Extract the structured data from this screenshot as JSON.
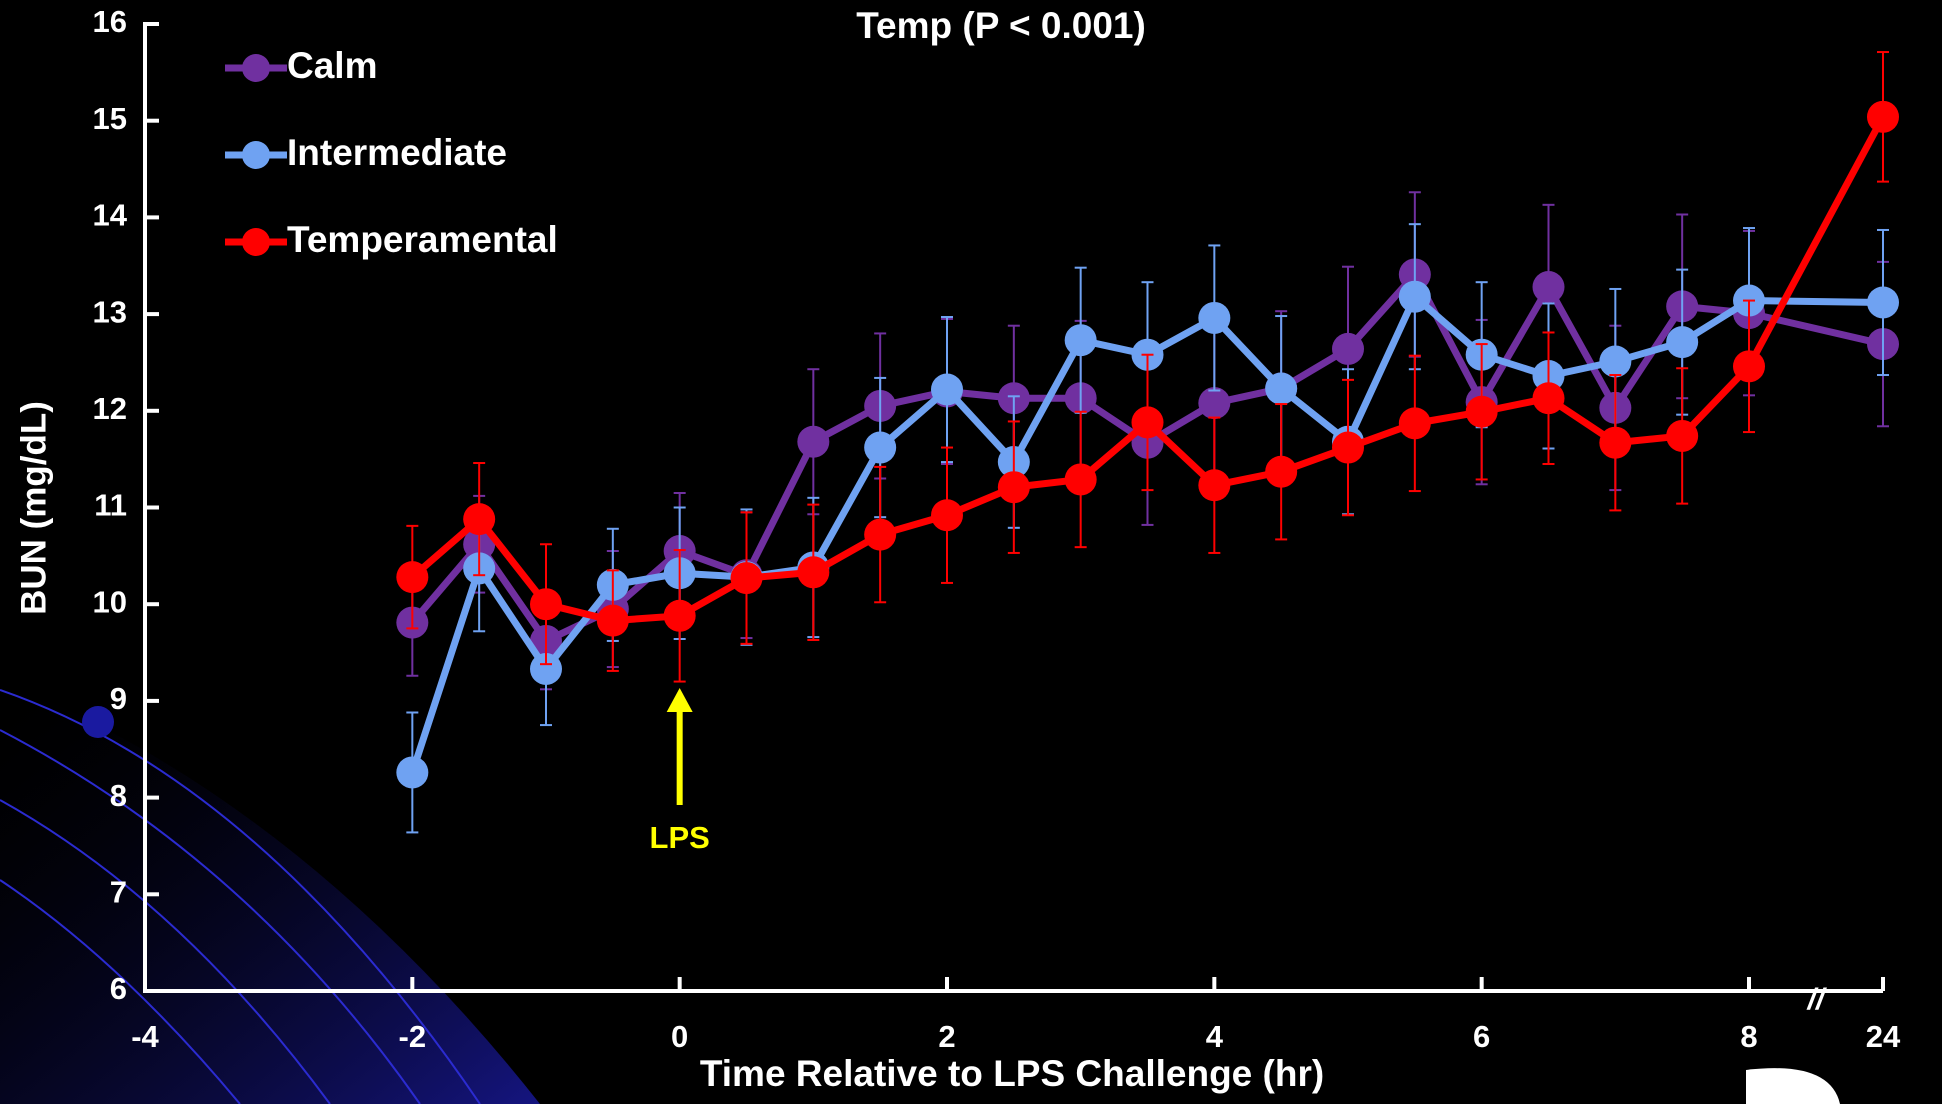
{
  "chart_data": {
    "type": "line",
    "title": "Temp (P < 0.001)",
    "x_label": "Time Relative to LPS Challenge (hr)",
    "y_label": "BUN (mg/dL)",
    "x": [
      -2,
      -1.5,
      -1,
      -0.5,
      0,
      0.5,
      1,
      1.5,
      2,
      2.5,
      3,
      3.5,
      4,
      4.5,
      5,
      5.5,
      6,
      6.5,
      7,
      7.5,
      8,
      24
    ],
    "series": [
      {
        "name": "Calm",
        "color": "#7030a0",
        "values": [
          9.81,
          10.62,
          9.62,
          9.95,
          10.55,
          10.3,
          11.68,
          12.05,
          12.2,
          12.13,
          12.13,
          11.67,
          12.08,
          12.23,
          12.64,
          13.41,
          12.09,
          13.28,
          12.03,
          13.08,
          13.01,
          12.69
        ],
        "errors": [
          0.55,
          0.5,
          0.5,
          0.6,
          0.6,
          0.65,
          0.75,
          0.75,
          0.75,
          0.75,
          0.8,
          0.85,
          0.85,
          0.8,
          0.85,
          0.85,
          0.85,
          0.85,
          0.85,
          0.95,
          0.85,
          0.85
        ]
      },
      {
        "name": "Intermediate",
        "color": "#6fa2f2",
        "values": [
          8.26,
          10.37,
          9.33,
          10.2,
          10.32,
          10.28,
          10.38,
          11.62,
          12.22,
          11.47,
          12.73,
          12.58,
          12.96,
          12.23,
          11.68,
          13.18,
          12.58,
          12.36,
          12.51,
          12.71,
          13.14,
          13.12
        ],
        "errors": [
          0.62,
          0.65,
          0.58,
          0.58,
          0.68,
          0.7,
          0.72,
          0.72,
          0.75,
          0.68,
          0.75,
          0.75,
          0.75,
          0.75,
          0.75,
          0.75,
          0.75,
          0.75,
          0.75,
          0.75,
          0.75,
          0.75
        ]
      },
      {
        "name": "Temperamental",
        "color": "#ff0000",
        "values": [
          10.28,
          10.88,
          10.0,
          9.83,
          9.88,
          10.27,
          10.33,
          10.72,
          10.92,
          11.21,
          11.29,
          11.88,
          11.23,
          11.37,
          11.62,
          11.87,
          11.99,
          12.13,
          11.67,
          11.74,
          12.46,
          15.04
        ],
        "errors": [
          0.53,
          0.58,
          0.62,
          0.52,
          0.68,
          0.68,
          0.7,
          0.7,
          0.7,
          0.68,
          0.7,
          0.7,
          0.7,
          0.7,
          0.7,
          0.7,
          0.7,
          0.68,
          0.7,
          0.7,
          0.68,
          0.67
        ]
      }
    ],
    "xlim": [
      -4,
      24
    ],
    "xticks": [
      -4,
      -2,
      0,
      2,
      4,
      6,
      8,
      24
    ],
    "ylim": [
      6,
      16
    ],
    "yticks": [
      6,
      7,
      8,
      9,
      10,
      11,
      12,
      13,
      14,
      15,
      16
    ],
    "axis_break_label": "//",
    "annotation": {
      "text": "LPS",
      "x": 0,
      "color": "#ffff00"
    },
    "legend": "upper left",
    "grid": false
  }
}
